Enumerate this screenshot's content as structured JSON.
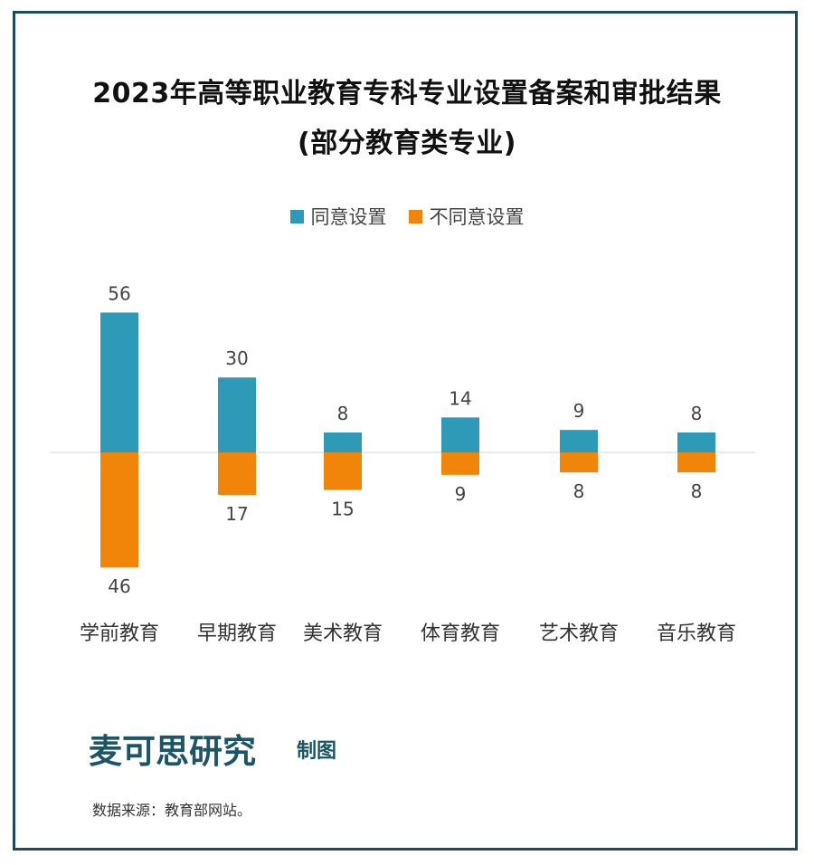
{
  "title_line1": "2023年高等职业教育专科专业设置备案和审批结果",
  "title_line2": "(部分教育类专业)",
  "brand_name": "麦可思研究",
  "brand_suffix": "制图",
  "source": "数据来源：教育部网站。",
  "colors": {
    "agree": "#2f9ab8",
    "disagree": "#f0850a",
    "frame": "#1f4a57",
    "brand": "#1b5566"
  },
  "chart_data": {
    "type": "bar",
    "categories": [
      "学前教育",
      "早期教育",
      "美术教育",
      "体育教育",
      "艺术教育",
      "音乐教育"
    ],
    "series": [
      {
        "name": "同意设置",
        "values": [
          56,
          30,
          8,
          14,
          9,
          8
        ]
      },
      {
        "name": "不同意设置",
        "values": [
          46,
          17,
          15,
          9,
          8,
          8
        ]
      }
    ],
    "layout": "diverging",
    "legend_position": "top-center",
    "grid": false
  }
}
